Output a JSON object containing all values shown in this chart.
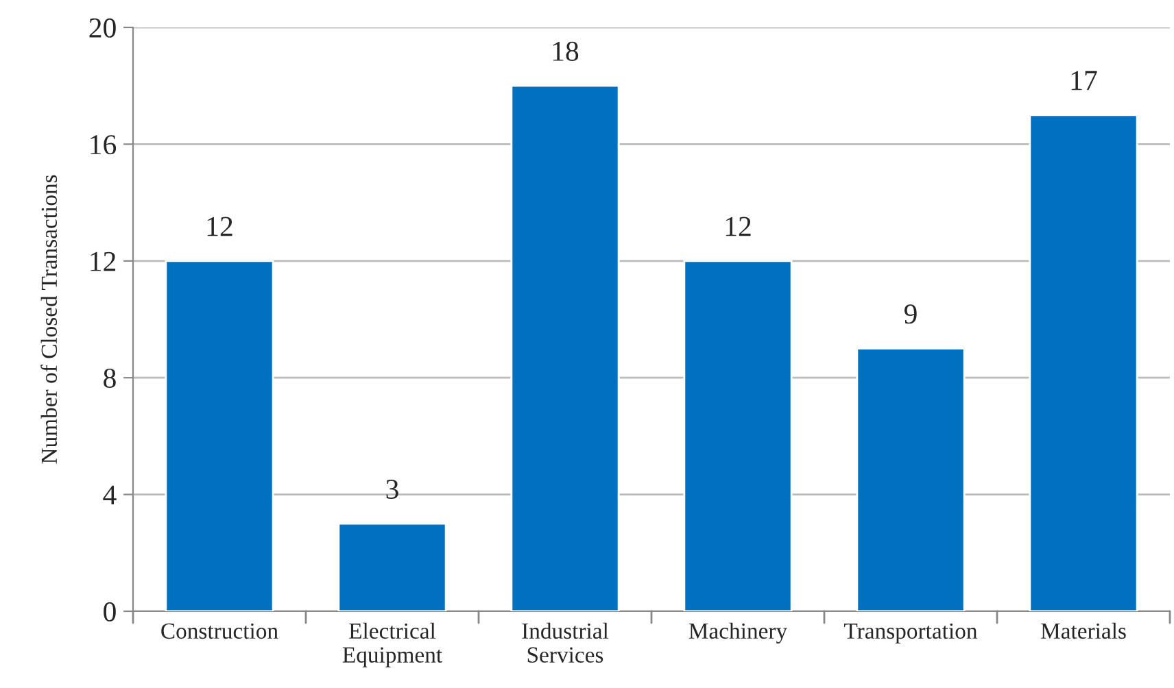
{
  "chart_data": {
    "type": "bar",
    "ylabel": "Number of Closed Transactions",
    "categories": [
      "Construction",
      "Electrical Equipment",
      "Industrial Services",
      "Machinery",
      "Transportation",
      "Materials"
    ],
    "values": [
      12,
      3,
      18,
      12,
      9,
      17
    ],
    "color": "#0070c0",
    "ylim": [
      0,
      20
    ],
    "yticks": [
      0,
      4,
      8,
      12,
      16,
      20
    ],
    "grid": "y",
    "data_labels": true
  }
}
